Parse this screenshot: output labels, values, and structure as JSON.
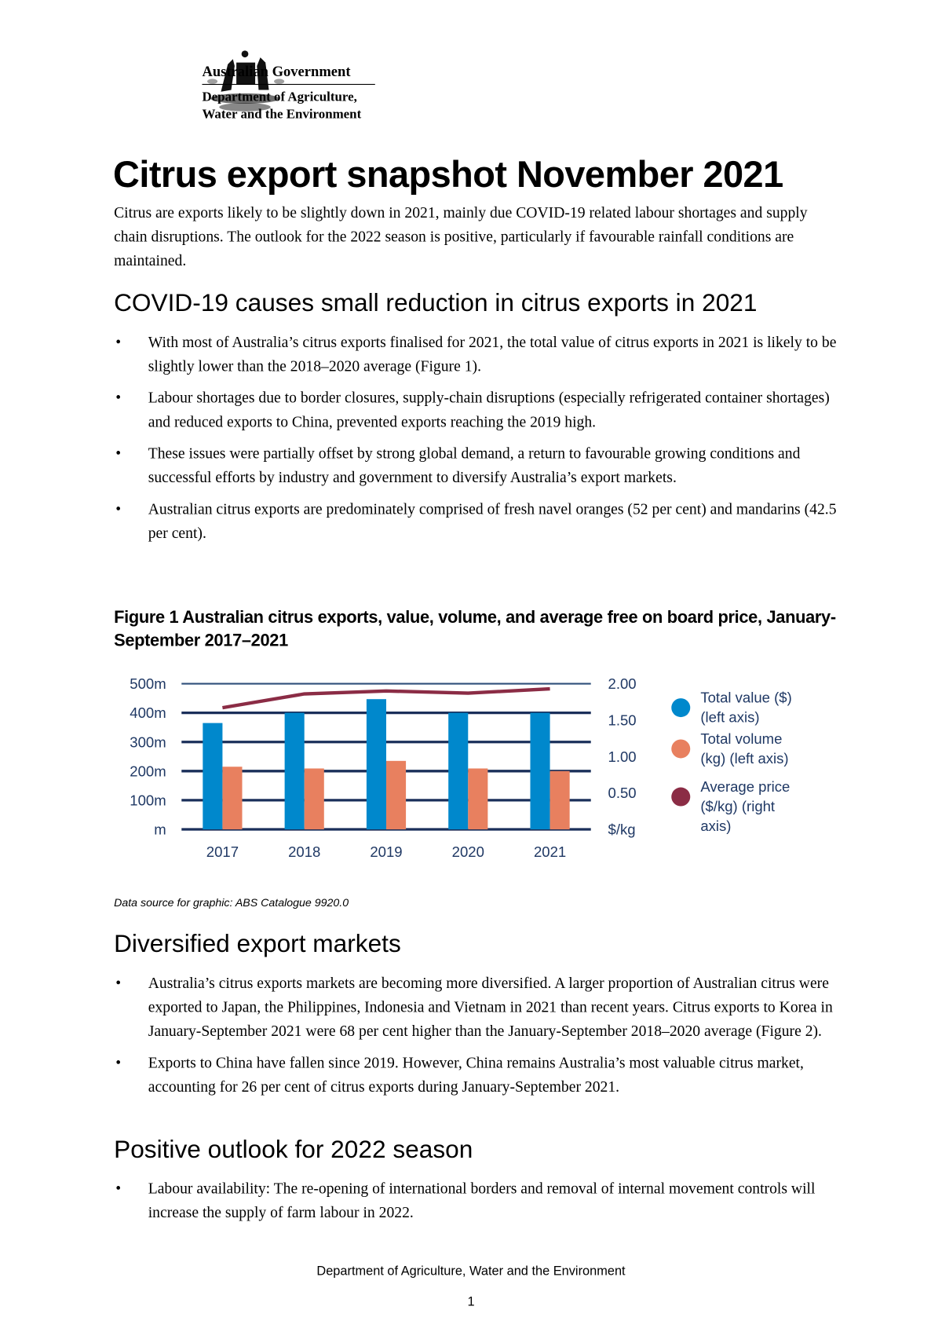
{
  "header": {
    "logo": "coat-of-arms",
    "gov": "Australian Government",
    "dept_line1": "Department of Agriculture,",
    "dept_line2": "Water and the Environment"
  },
  "title": "Citrus export snapshot November 2021",
  "intro": "Citrus are exports likely to be slightly down in 2021, mainly due COVID-19 related labour shortages and supply chain disruptions. The outlook for the 2022 season is positive, particularly if favourable rainfall conditions are maintained.",
  "section1": {
    "heading": "COVID-19 causes small reduction in citrus exports in 2021",
    "bullets": [
      "With most of Australia’s citrus exports finalised for 2021, the total value of citrus exports in 2021 is likely to be slightly lower than the 2018–2020 average (Figure 1).",
      "Labour shortages due to border closures, supply-chain disruptions (especially refrigerated container shortages) and reduced exports to China, prevented exports reaching the 2019 high.",
      "These issues were partially offset by strong global demand, a return to favourable growing conditions and successful efforts by industry and government to diversify Australia’s export markets.",
      "Australian citrus exports are predominately comprised of fresh navel oranges (52 per cent) and mandarins (42.5 per cent)."
    ]
  },
  "figure_caption": "Figure 1 Australian citrus exports, value, volume, and average free on board price, January-September 2017–2021",
  "chart_data": {
    "type": "bar",
    "categories": [
      "2017",
      "2018",
      "2019",
      "2020",
      "2021"
    ],
    "series": [
      {
        "name": "Total value ($) (left axis)",
        "axis": "left",
        "kind": "bar",
        "color": "#0088cc",
        "values": [
          365000000,
          400000000,
          447000000,
          400000000,
          400000000
        ]
      },
      {
        "name": "Total volume (kg) (left axis)",
        "axis": "left",
        "kind": "bar",
        "color": "#e8805f",
        "values": [
          215000000,
          209000000,
          235000000,
          209000000,
          200000000
        ]
      },
      {
        "name": "Average price ($/kg) (right axis)",
        "axis": "right",
        "kind": "line",
        "color": "#8b2c45",
        "values": [
          1.67,
          1.86,
          1.9,
          1.87,
          1.93
        ]
      }
    ],
    "left_ticks": [
      "m",
      "100m",
      "200m",
      "300m",
      "400m",
      "500m"
    ],
    "right_ticks": [
      "$/kg",
      "0.50",
      "1.00",
      "1.50",
      "2.00"
    ],
    "ylim_left": [
      0,
      500000000
    ],
    "ylim_right": [
      0,
      2.0
    ],
    "grid": true,
    "legend_position": "right"
  },
  "data_source": "Data source for graphic: ABS Catalogue 9920.0",
  "section2": {
    "heading": "Diversified export markets",
    "bullets": [
      "Australia’s citrus exports markets are becoming more diversified. A larger proportion of Australian citrus were exported to Japan, the Philippines, Indonesia and Vietnam in 2021 than recent years. Citrus exports to Korea in January-September 2021 were 68 per cent higher than the January-September 2018–2020 average (Figure 2).",
      "Exports to China have fallen since 2019. However, China remains Australia’s most valuable citrus market, accounting for 26 per cent of citrus exports during January-September 2021."
    ]
  },
  "section3": {
    "heading": "Positive outlook for 2022 season",
    "bullets": [
      "Labour availability: The re-opening of international borders and removal of internal movement controls will increase the supply of farm labour in 2022."
    ]
  },
  "footer": {
    "text": "Department of Agriculture, Water and the Environment",
    "page": "1"
  }
}
